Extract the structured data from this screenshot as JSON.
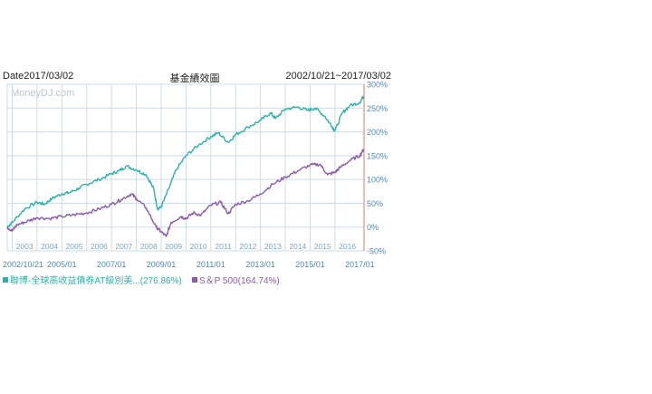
{
  "header": {
    "date": "Date2017/03/02",
    "title": "基金績效圖",
    "range": "2002/10/21~2017/03/02"
  },
  "watermark": "MoneyDJ.com",
  "colors": {
    "series_a": "#2bb2a6",
    "series_b": "#8a5bab",
    "grid": "#c9dde9",
    "axis_text": "#4e89b8",
    "year_text": "#7aa6c8",
    "marker": "#e07a5f"
  },
  "legend": [
    {
      "label": "聯博-全球高收益債券AT級別美...(276.86%)"
    },
    {
      "label": "S＆P 500(164.74%)"
    }
  ],
  "chart_data": {
    "type": "line",
    "title": "基金績效圖",
    "ylim": [
      -50,
      300
    ],
    "yticks": [
      "300%",
      "250%",
      "200%",
      "150%",
      "100%",
      "50%",
      "0%",
      "-50%"
    ],
    "ytick_values": [
      300,
      250,
      200,
      150,
      100,
      50,
      0,
      -50
    ],
    "year_labels": [
      "2003",
      "2004",
      "2005",
      "2006",
      "2007",
      "2008",
      "2009",
      "2010",
      "2011",
      "2012",
      "2013",
      "2014",
      "2015",
      "2016"
    ],
    "date_labels": [
      "2002/10/21",
      "2005/01",
      "2007/01",
      "2009/01",
      "2011/01",
      "2013/01",
      "2015/01",
      "2017/01"
    ],
    "date_label_x": [
      2002.8,
      2005.0,
      2007.0,
      2009.0,
      2011.0,
      2013.0,
      2015.0,
      2017.0
    ],
    "xlim": [
      2002.8,
      2017.17
    ],
    "series": [
      {
        "name": "聯博-全球高收益債券AT級別美...",
        "x": [
          2002.8,
          2003.0,
          2003.5,
          2004.0,
          2004.3,
          2004.6,
          2005.0,
          2005.3,
          2005.7,
          2006.0,
          2006.5,
          2007.0,
          2007.3,
          2007.6,
          2008.0,
          2008.4,
          2008.7,
          2008.85,
          2009.0,
          2009.3,
          2009.6,
          2010.0,
          2010.5,
          2011.0,
          2011.3,
          2011.7,
          2012.0,
          2012.5,
          2013.0,
          2013.4,
          2013.6,
          2014.0,
          2014.5,
          2014.9,
          2015.2,
          2015.6,
          2015.9,
          2016.0,
          2016.3,
          2016.6,
          2017.0,
          2017.17
        ],
        "y": [
          0,
          10,
          38,
          52,
          48,
          60,
          70,
          72,
          82,
          90,
          100,
          112,
          118,
          128,
          120,
          110,
          80,
          38,
          42,
          80,
          120,
          150,
          172,
          190,
          198,
          178,
          194,
          210,
          224,
          240,
          228,
          248,
          252,
          245,
          250,
          232,
          210,
          202,
          240,
          255,
          262,
          276.86
        ]
      },
      {
        "name": "S＆P 500",
        "x": [
          2002.8,
          2003.0,
          2003.2,
          2003.6,
          2004.0,
          2004.5,
          2005.0,
          2005.5,
          2006.0,
          2006.5,
          2007.0,
          2007.4,
          2007.8,
          2008.0,
          2008.4,
          2008.8,
          2009.0,
          2009.2,
          2009.4,
          2009.8,
          2010.0,
          2010.3,
          2010.6,
          2011.0,
          2011.4,
          2011.7,
          2012.0,
          2012.5,
          2013.0,
          2013.5,
          2014.0,
          2014.5,
          2015.0,
          2015.4,
          2015.7,
          2016.0,
          2016.2,
          2016.6,
          2017.0,
          2017.17
        ],
        "y": [
          0,
          -8,
          5,
          12,
          20,
          18,
          22,
          26,
          30,
          38,
          48,
          58,
          70,
          60,
          40,
          0,
          -10,
          -20,
          10,
          22,
          18,
          30,
          25,
          46,
          52,
          28,
          48,
          55,
          70,
          90,
          105,
          118,
          130,
          132,
          110,
          115,
          125,
          140,
          150,
          164.74
        ]
      }
    ]
  }
}
